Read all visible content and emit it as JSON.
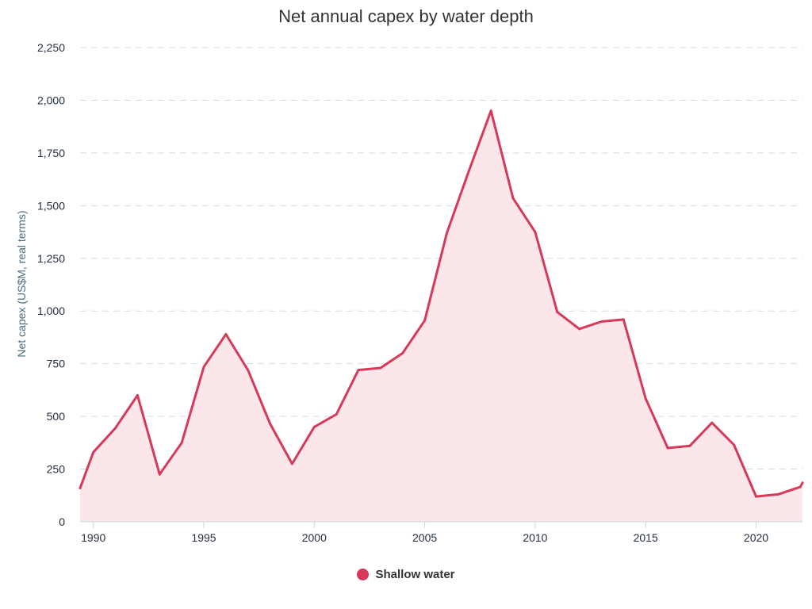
{
  "chart_data": {
    "type": "area",
    "title": "Net annual capex by water depth",
    "ylabel": "Net capex (US$M, real terms)",
    "xlabel": "",
    "xlim": [
      1989.4,
      2022.1
    ],
    "ylim": [
      0,
      2250
    ],
    "x_ticks": [
      1990,
      1995,
      2000,
      2005,
      2010,
      2015,
      2020
    ],
    "x_tick_labels": [
      "1990",
      "1995",
      "2000",
      "2005",
      "2010",
      "2015",
      "2020"
    ],
    "y_ticks": [
      0,
      250,
      500,
      750,
      1000,
      1250,
      1500,
      1750,
      2000,
      2250
    ],
    "y_tick_labels": [
      "0",
      "250",
      "500",
      "750",
      "1,000",
      "1,250",
      "1,500",
      "1,750",
      "2,000",
      "2,250"
    ],
    "grid": true,
    "legend_position": "bottom-center",
    "series": [
      {
        "name": "Shallow water",
        "color": "#d6395a",
        "fill_color": "#fbe6ea",
        "x": [
          1989.4,
          1990,
          1991,
          1992,
          1993,
          1994,
          1995,
          1996,
          1997,
          1998,
          1999,
          2000,
          2001,
          2002,
          2003,
          2004,
          2005,
          2006,
          2007,
          2008,
          2009,
          2010,
          2011,
          2012,
          2013,
          2014,
          2015,
          2016,
          2017,
          2018,
          2019,
          2020,
          2021,
          2022,
          2022.1
        ],
        "values": [
          160,
          330,
          445,
          600,
          225,
          375,
          735,
          890,
          720,
          465,
          275,
          450,
          510,
          720,
          730,
          800,
          955,
          1370,
          1665,
          1950,
          1535,
          1375,
          995,
          915,
          950,
          960,
          585,
          350,
          360,
          470,
          365,
          120,
          130,
          165,
          185
        ]
      }
    ]
  },
  "legend": {
    "label": "Shallow water"
  }
}
